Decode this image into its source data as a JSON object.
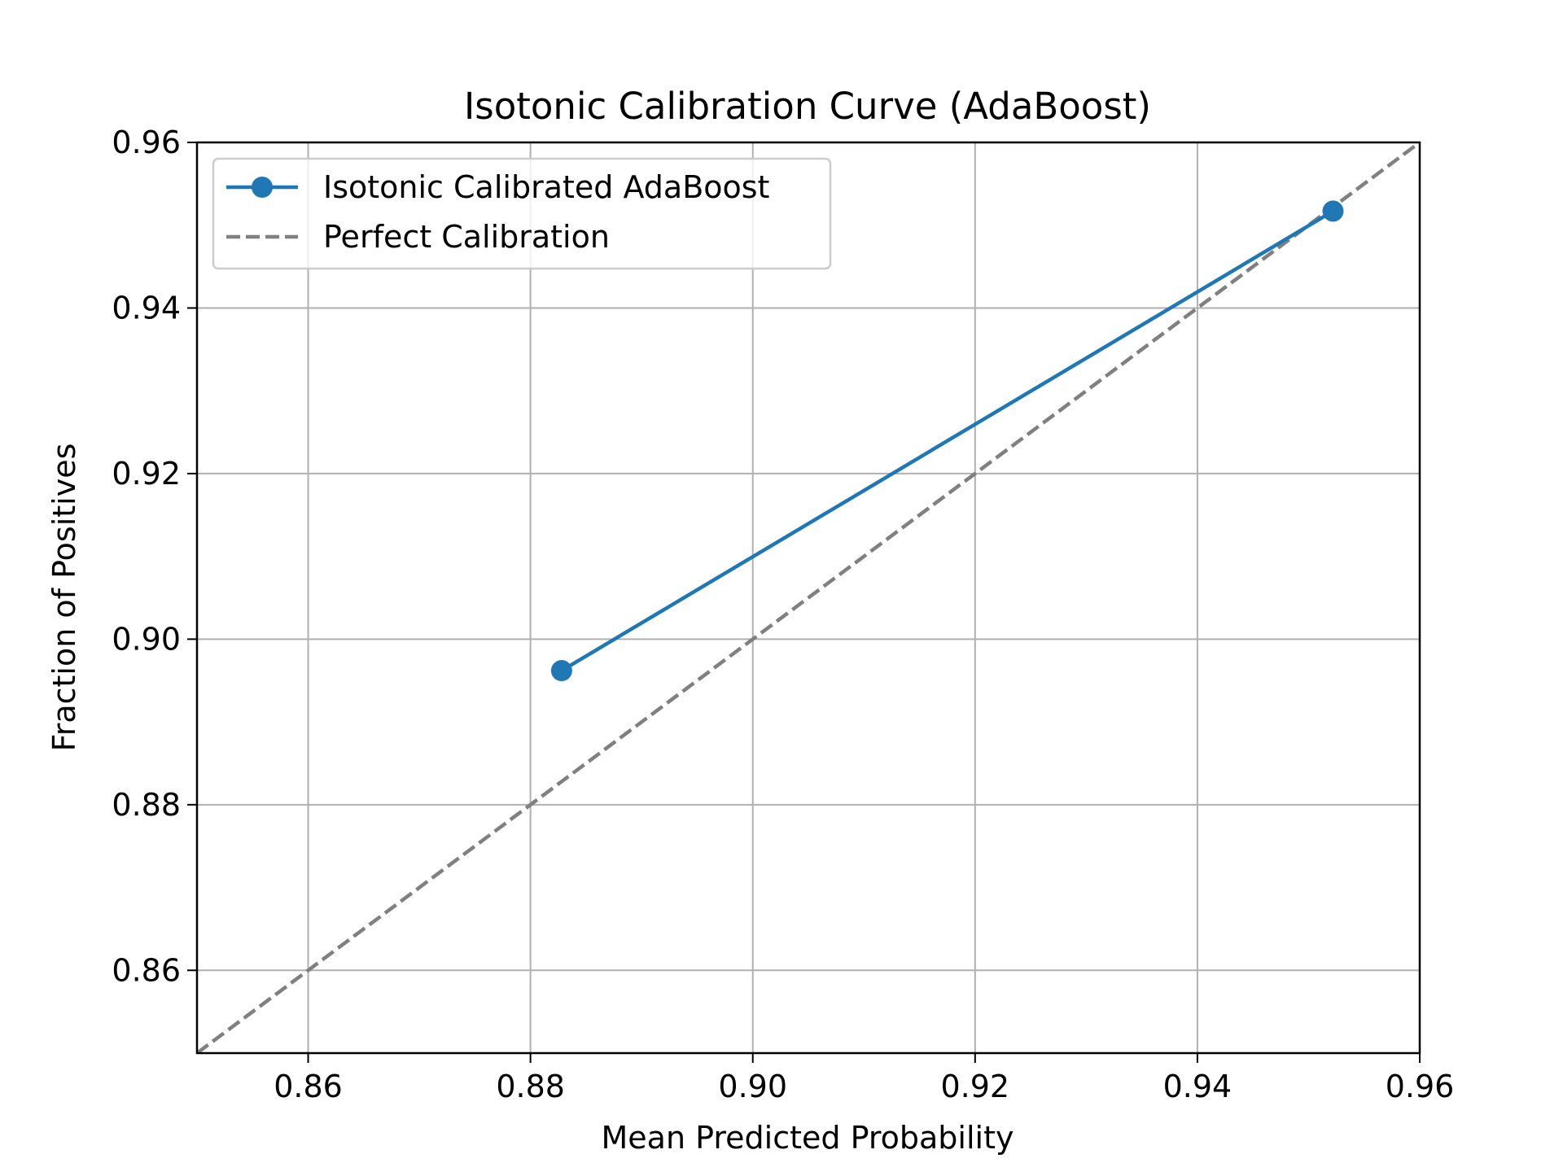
{
  "chart_data": {
    "type": "line",
    "title": "Isotonic Calibration Curve (AdaBoost)",
    "xlabel": "Mean Predicted Probability",
    "ylabel": "Fraction of Positives",
    "xlim": [
      0.85,
      0.96
    ],
    "ylim": [
      0.85,
      0.96
    ],
    "xticks": [
      0.86,
      0.88,
      0.9,
      0.92,
      0.94,
      0.96
    ],
    "xtick_labels": [
      "0.86",
      "0.88",
      "0.90",
      "0.92",
      "0.94",
      "0.96"
    ],
    "yticks": [
      0.86,
      0.88,
      0.9,
      0.92,
      0.94,
      0.96
    ],
    "ytick_labels": [
      "0.86",
      "0.88",
      "0.90",
      "0.92",
      "0.94",
      "0.96"
    ],
    "grid": true,
    "legend_position": "top-left",
    "series": [
      {
        "name": "Isotonic Calibrated AdaBoost",
        "x": [
          0.8828,
          0.9522
        ],
        "y": [
          0.8962,
          0.9517
        ],
        "color": "#1f77b4",
        "line_style": "solid",
        "marker": "circle"
      },
      {
        "name": "Perfect Calibration",
        "x": [
          0.85,
          0.96
        ],
        "y": [
          0.85,
          0.96
        ],
        "color": "#808080",
        "line_style": "dashed",
        "marker": "none"
      }
    ]
  }
}
